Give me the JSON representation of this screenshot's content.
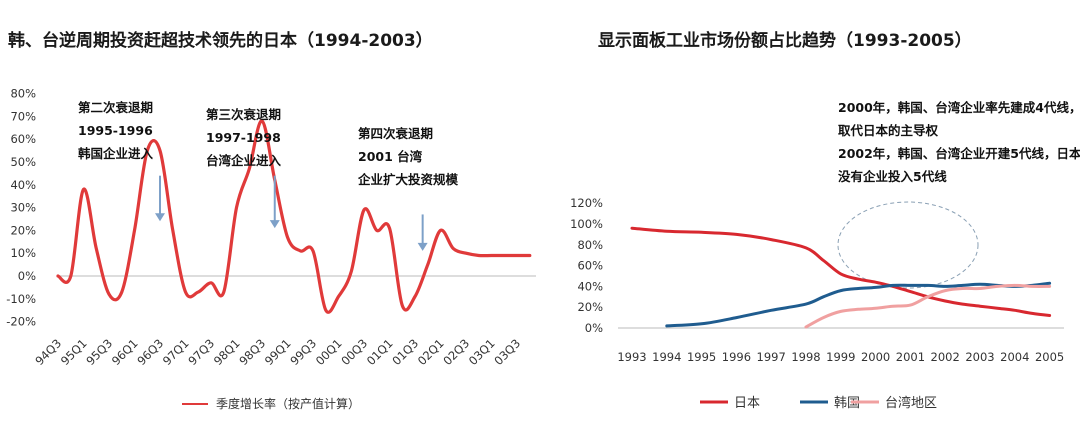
{
  "left_title": "韩、台逆周期投资赶超技术领先的日本（1994-2003）",
  "right_title": "显示面板工业市场份额占比趋势（1993-2005）",
  "chart_data": [
    {
      "type": "line",
      "title": "韩、台逆周期投资赶超技术领先的日本（1994-2003）",
      "ylim": [
        -20,
        80
      ],
      "yticks": [
        "80%",
        "70%",
        "60%",
        "50%",
        "40%",
        "30%",
        "20%",
        "10%",
        "0%",
        "-10%",
        "-20%"
      ],
      "categories": [
        "94Q3",
        "95Q1",
        "95Q3",
        "96Q1",
        "96Q3",
        "97Q1",
        "97Q3",
        "98Q1",
        "98Q3",
        "99Q1",
        "99Q3",
        "00Q1",
        "00Q3",
        "01Q1",
        "01Q3",
        "02Q1",
        "02Q3",
        "03Q1",
        "03Q3"
      ],
      "series": [
        {
          "name": "季度增长率（按产值计算）",
          "color": "#e03a3a",
          "x": [
            0,
            0.5,
            1,
            1.5,
            2,
            2.5,
            3,
            3.5,
            4,
            4.5,
            5,
            5.5,
            6,
            6.5,
            7,
            7.5,
            8,
            8.5,
            9,
            9.5,
            10,
            10.5,
            11,
            11.5,
            12,
            12.5,
            13,
            13.5,
            14,
            14.5,
            15,
            15.5,
            16,
            16.5,
            17,
            17.5,
            18,
            18.5
          ],
          "values": [
            0,
            0,
            38,
            12,
            -8,
            -7,
            20,
            55,
            55,
            20,
            -7,
            -7,
            -3,
            -7,
            30,
            47,
            68,
            42,
            17,
            11,
            11,
            -15,
            -9,
            2,
            29,
            20,
            21,
            -13,
            -9,
            5,
            20,
            12,
            10,
            9,
            9,
            9,
            9,
            9
          ]
        }
      ],
      "annotations": [
        {
          "lines": [
            "第二次衰退期",
            "1995-1996",
            "韩国企业进入"
          ],
          "arrow_x": 4,
          "arrow_from": 44,
          "arrow_to": 24
        },
        {
          "lines": [
            "第三次衰退期",
            "1997-1998",
            "台湾企业进入"
          ],
          "arrow_x": 8.5,
          "arrow_from": 44,
          "arrow_to": 21
        },
        {
          "lines": [
            "第四次衰退期",
            "2001 台湾",
            "企业扩大投资规模"
          ],
          "arrow_x": 14.3,
          "arrow_from": 27,
          "arrow_to": 11
        }
      ],
      "legend": [
        "季度增长率（按产值计算）"
      ],
      "legend_placement": "bottom"
    },
    {
      "type": "line",
      "title": "显示面板工业市场份额占比趋势（1993-2005）",
      "ylim": [
        0,
        120
      ],
      "yticks": [
        "120%",
        "100%",
        "80%",
        "60%",
        "40%",
        "20%",
        "0%"
      ],
      "x": [
        1993,
        1994,
        1995,
        1996,
        1997,
        1998,
        1999,
        2000,
        2001,
        2002,
        2003,
        2004,
        2005
      ],
      "series": [
        {
          "name": "日本",
          "color": "#d8282f",
          "x": [
            1993,
            1994,
            1995,
            1996,
            1997,
            1998,
            1998.5,
            1999,
            1999.5,
            2000,
            2000.5,
            2001,
            2001.5,
            2002,
            2002.5,
            2003,
            2003.5,
            2004,
            2004.5,
            2005
          ],
          "values": [
            96,
            93,
            92,
            90,
            85,
            77,
            65,
            52,
            47,
            44,
            40,
            35,
            30,
            26,
            23,
            21,
            19,
            17,
            14,
            12
          ]
        },
        {
          "name": "韩国",
          "color": "#1f5c8f",
          "x": [
            1994,
            1995,
            1996,
            1997,
            1998,
            1998.5,
            1999,
            1999.5,
            2000,
            2000.5,
            2001,
            2001.5,
            2002,
            2002.5,
            2003,
            2003.5,
            2004,
            2004.5,
            2005
          ],
          "values": [
            2,
            4,
            10,
            17,
            23,
            30,
            36,
            38,
            39,
            41,
            41,
            41,
            40,
            41,
            42,
            41,
            40,
            41,
            43
          ]
        },
        {
          "name": "台湾地区",
          "color": "#f0a0a0",
          "x": [
            1998,
            1998.5,
            1999,
            1999.5,
            2000,
            2000.5,
            2001,
            2001.5,
            2002,
            2002.5,
            2003,
            2003.5,
            2004,
            2004.5,
            2005
          ],
          "values": [
            1,
            10,
            16,
            18,
            19,
            21,
            22,
            30,
            36,
            38,
            38,
            40,
            41,
            40,
            40
          ]
        }
      ],
      "annotations": [
        {
          "lines": [
            "2000年，韩国、台湾企业率先建成4代线，",
            "取代日本的主导权",
            "2002年，韩国、台湾企业开建5代线，日本",
            "没有企业投入5代线"
          ]
        }
      ],
      "legend": [
        "日本",
        "韩国",
        "台湾地区"
      ],
      "legend_placement": "bottom"
    }
  ]
}
